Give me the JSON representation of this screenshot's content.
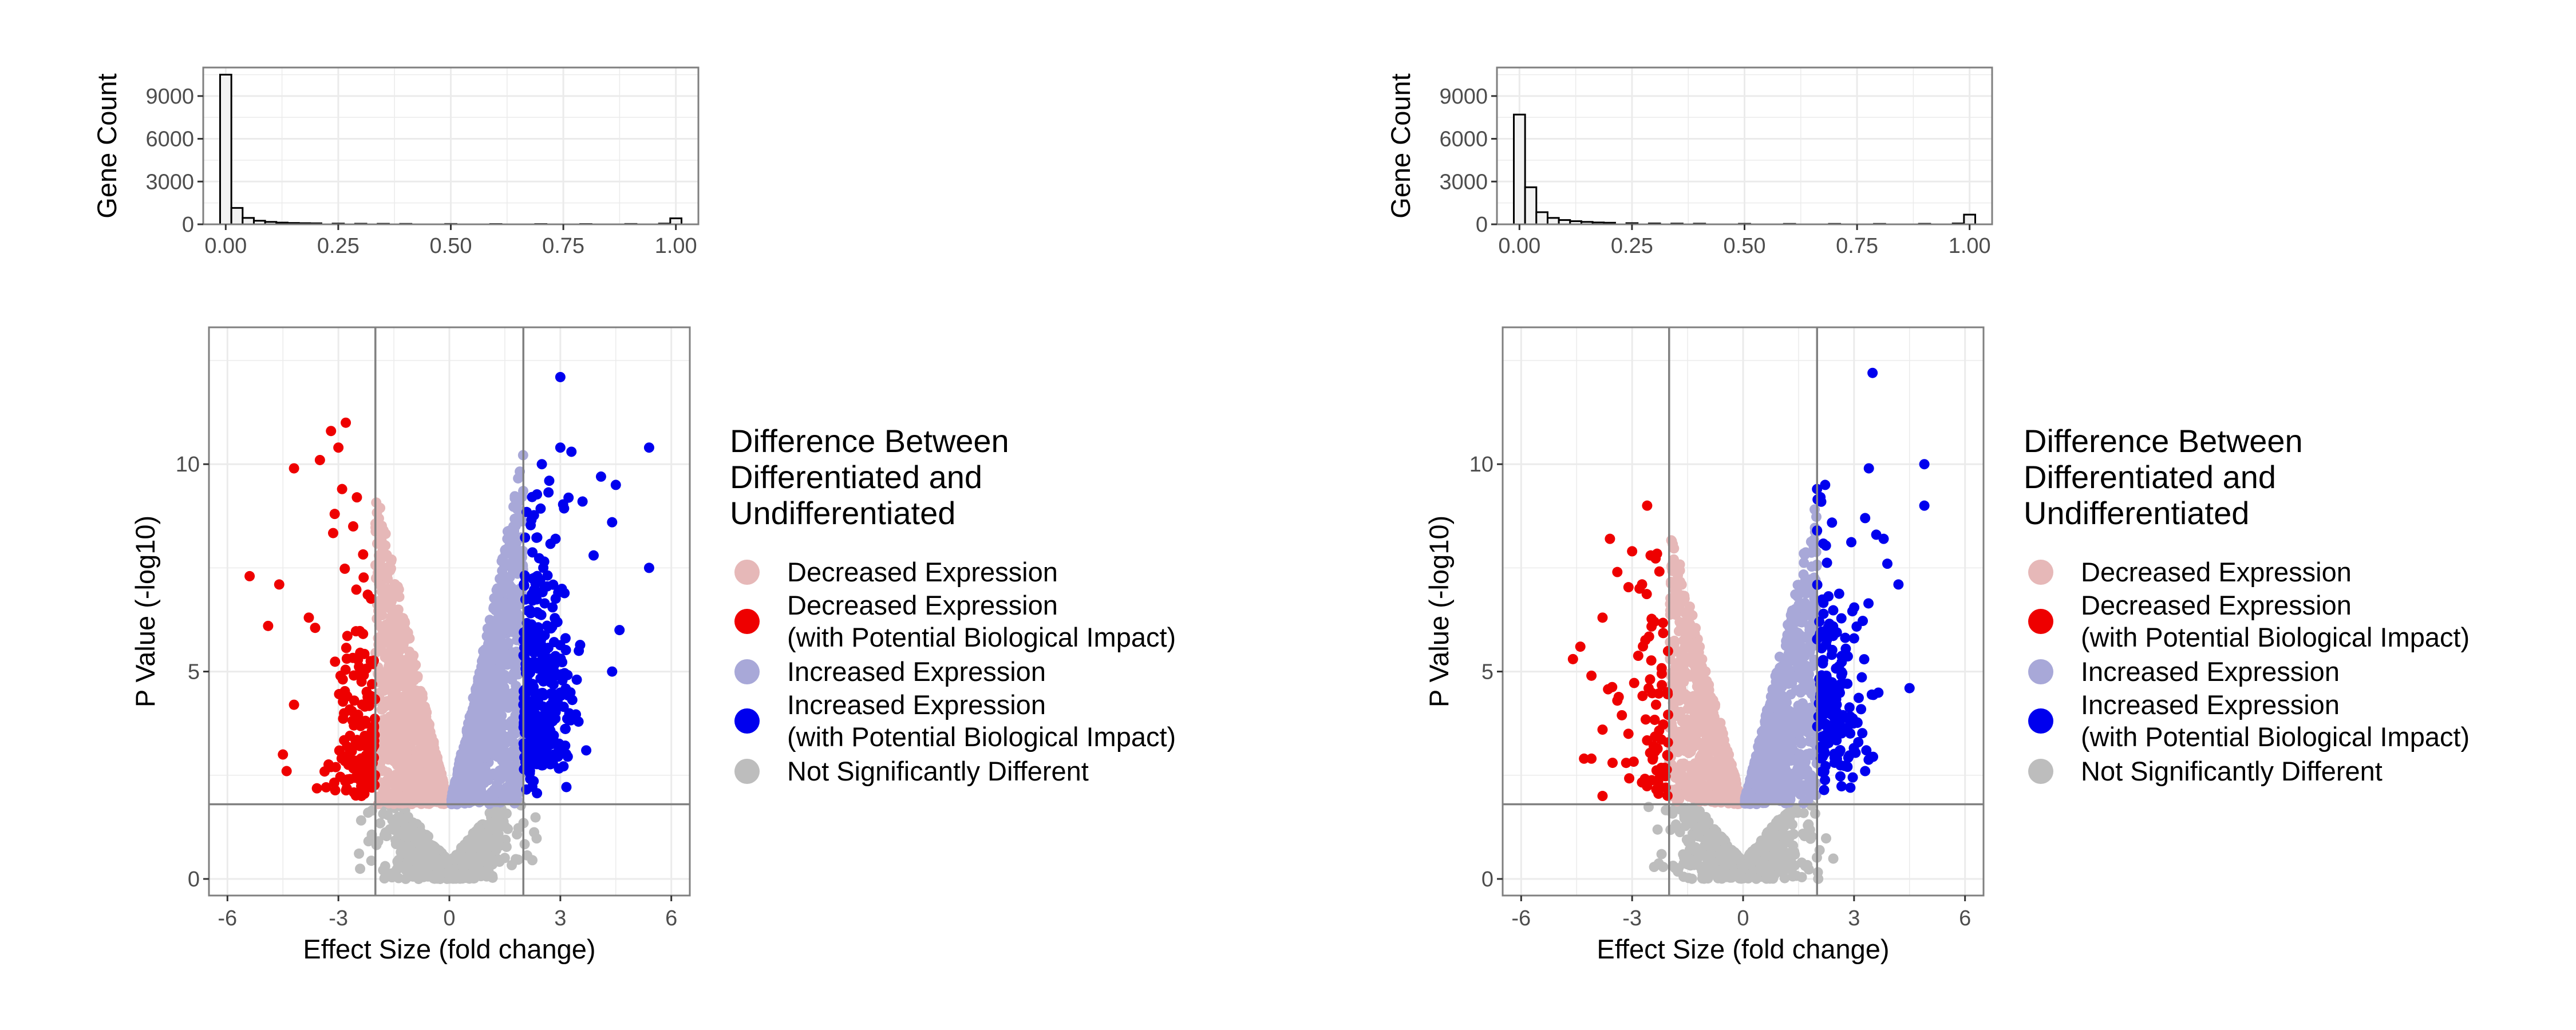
{
  "chart_data": [
    {
      "panel": "left",
      "histogram": {
        "type": "bar",
        "ylabel": "Gene Count",
        "xlabel": "",
        "xlim": [
          -0.05,
          1.05
        ],
        "ylim": [
          0,
          11000
        ],
        "x_ticks": [
          "0.00",
          "0.25",
          "0.50",
          "0.75",
          "1.00"
        ],
        "y_ticks": [
          "0",
          "3000",
          "6000",
          "9000"
        ],
        "bin_width": 0.025,
        "bins": [
          {
            "x": 0.0,
            "count": 10500
          },
          {
            "x": 0.025,
            "count": 1150
          },
          {
            "x": 0.05,
            "count": 450
          },
          {
            "x": 0.075,
            "count": 250
          },
          {
            "x": 0.1,
            "count": 170
          },
          {
            "x": 0.125,
            "count": 120
          },
          {
            "x": 0.15,
            "count": 95
          },
          {
            "x": 0.175,
            "count": 80
          },
          {
            "x": 0.2,
            "count": 70
          },
          {
            "x": 0.25,
            "count": 50
          },
          {
            "x": 0.3,
            "count": 40
          },
          {
            "x": 0.35,
            "count": 35
          },
          {
            "x": 0.4,
            "count": 30
          },
          {
            "x": 0.5,
            "count": 25
          },
          {
            "x": 0.6,
            "count": 20
          },
          {
            "x": 0.7,
            "count": 20
          },
          {
            "x": 0.8,
            "count": 20
          },
          {
            "x": 0.9,
            "count": 25
          },
          {
            "x": 0.975,
            "count": 50
          },
          {
            "x": 1.0,
            "count": 420
          }
        ]
      },
      "volcano": {
        "type": "scatter",
        "xlabel": "Effect Size (fold change)",
        "ylabel": "P Value (-log10)",
        "xlim": [
          -6.5,
          6.5
        ],
        "ylim": [
          -0.4,
          13.3
        ],
        "x_ticks": [
          "-6",
          "-3",
          "0",
          "3",
          "6"
        ],
        "y_ticks": [
          "0",
          "5",
          "10"
        ],
        "vlines": [
          -2,
          2
        ],
        "hline": 1.8,
        "extreme_points": {
          "decreased_impact": [
            [
              -2.8,
              11
            ],
            [
              -3.2,
              10.8
            ],
            [
              -3.0,
              10.4
            ],
            [
              -4.2,
              9.9
            ],
            [
              -3.5,
              10.1
            ],
            [
              -5.4,
              7.3
            ],
            [
              -4.6,
              7.1
            ],
            [
              -4.9,
              6.1
            ],
            [
              -4.2,
              4.2
            ],
            [
              -4.4,
              2.6
            ],
            [
              -4.5,
              3.0
            ],
            [
              -3.8,
              6.3
            ],
            [
              -3.1,
              8.8
            ],
            [
              -2.9,
              9.4
            ],
            [
              -2.5,
              9.2
            ],
            [
              -2.6,
              8.5
            ]
          ],
          "increased_impact": [
            [
              3.0,
              12.1
            ],
            [
              5.4,
              10.4
            ],
            [
              5.4,
              7.5
            ],
            [
              4.5,
              9.5
            ],
            [
              4.4,
              8.6
            ],
            [
              4.6,
              6.0
            ],
            [
              4.4,
              5.0
            ],
            [
              3.7,
              3.1
            ],
            [
              3.0,
              10.4
            ],
            [
              3.3,
              10.3
            ],
            [
              2.5,
              10.0
            ],
            [
              2.7,
              9.6
            ],
            [
              3.6,
              9.1
            ],
            [
              4.1,
              9.7
            ],
            [
              3.9,
              7.8
            ],
            [
              3.5,
              5.5
            ]
          ]
        },
        "clouds": {
          "decreased_count": 900,
          "decreased_impact_count": 160,
          "increased_count": 900,
          "increased_impact_count": 340,
          "ns_count": 700
        }
      }
    },
    {
      "panel": "right",
      "histogram": {
        "type": "bar",
        "ylabel": "Gene Count",
        "xlabel": "",
        "xlim": [
          -0.05,
          1.05
        ],
        "ylim": [
          0,
          11000
        ],
        "x_ticks": [
          "0.00",
          "0.25",
          "0.50",
          "0.75",
          "1.00"
        ],
        "y_ticks": [
          "0",
          "3000",
          "6000",
          "9000"
        ],
        "bin_width": 0.025,
        "bins": [
          {
            "x": 0.0,
            "count": 7700
          },
          {
            "x": 0.025,
            "count": 2600
          },
          {
            "x": 0.05,
            "count": 850
          },
          {
            "x": 0.075,
            "count": 450
          },
          {
            "x": 0.1,
            "count": 300
          },
          {
            "x": 0.125,
            "count": 220
          },
          {
            "x": 0.15,
            "count": 170
          },
          {
            "x": 0.175,
            "count": 130
          },
          {
            "x": 0.2,
            "count": 110
          },
          {
            "x": 0.25,
            "count": 80
          },
          {
            "x": 0.3,
            "count": 60
          },
          {
            "x": 0.35,
            "count": 50
          },
          {
            "x": 0.4,
            "count": 45
          },
          {
            "x": 0.5,
            "count": 35
          },
          {
            "x": 0.6,
            "count": 30
          },
          {
            "x": 0.7,
            "count": 30
          },
          {
            "x": 0.8,
            "count": 30
          },
          {
            "x": 0.9,
            "count": 35
          },
          {
            "x": 0.975,
            "count": 60
          },
          {
            "x": 1.0,
            "count": 680
          }
        ]
      },
      "volcano": {
        "type": "scatter",
        "xlabel": "Effect Size (fold change)",
        "ylabel": "P Value (-log10)",
        "xlim": [
          -6.5,
          6.5
        ],
        "ylim": [
          -0.4,
          13.3
        ],
        "x_ticks": [
          "-6",
          "-3",
          "0",
          "3",
          "6"
        ],
        "y_ticks": [
          "0",
          "5",
          "10"
        ],
        "vlines": [
          -2,
          2
        ],
        "hline": 1.8,
        "extreme_points": {
          "decreased_impact": [
            [
              -3.6,
              8.2
            ],
            [
              -3.0,
              7.9
            ],
            [
              -2.5,
              7.8
            ],
            [
              -3.4,
              7.4
            ],
            [
              -2.8,
              7.0
            ],
            [
              -3.8,
              6.3
            ],
            [
              -2.4,
              6.2
            ],
            [
              -4.4,
              5.6
            ],
            [
              -4.6,
              5.3
            ],
            [
              -4.1,
              4.9
            ],
            [
              -3.4,
              4.3
            ],
            [
              -3.1,
              3.5
            ],
            [
              -3.8,
              3.6
            ],
            [
              -4.1,
              2.9
            ],
            [
              -4.3,
              2.9
            ],
            [
              -3.8,
              2.0
            ]
          ],
          "increased_impact": [
            [
              3.5,
              12.2
            ],
            [
              4.9,
              10.0
            ],
            [
              3.4,
              9.9
            ],
            [
              2.0,
              9.4
            ],
            [
              2.0,
              8.4
            ],
            [
              4.9,
              9.0
            ],
            [
              3.3,
              8.7
            ],
            [
              3.6,
              8.3
            ],
            [
              3.8,
              8.2
            ],
            [
              4.2,
              7.1
            ],
            [
              3.9,
              7.6
            ],
            [
              4.5,
              4.6
            ],
            [
              3.0,
              5.8
            ],
            [
              3.3,
              2.6
            ],
            [
              2.9,
              2.2
            ]
          ]
        },
        "clouds": {
          "decreased_count": 650,
          "decreased_impact_count": 70,
          "increased_count": 750,
          "increased_impact_count": 170,
          "ns_count": 650
        }
      }
    }
  ],
  "legend": {
    "title_lines": [
      "Difference Between",
      "Differentiated and",
      "Undifferentiated"
    ],
    "items": [
      {
        "lines": [
          "Decreased Expression"
        ],
        "color": "#e6b8b8"
      },
      {
        "lines": [
          "Decreased Expression",
          " (with Potential Biological Impact)"
        ],
        "color": "#ee0000"
      },
      {
        "lines": [
          "Increased Expression"
        ],
        "color": "#a8a8d8"
      },
      {
        "lines": [
          "Increased Expression",
          "(with Potential Biological Impact)"
        ],
        "color": "#0000ee"
      },
      {
        "lines": [
          "Not Significantly Different"
        ],
        "color": "#bdbdbd"
      }
    ]
  },
  "colors": {
    "decreased": "#e6b8b8",
    "decreased_impact": "#ee0000",
    "increased": "#a8a8d8",
    "increased_impact": "#0000ee",
    "ns": "#bdbdbd",
    "grid": "#ebebeb",
    "axis_line": "#7f7f7f",
    "hist_fill": "#f2f2f2"
  }
}
